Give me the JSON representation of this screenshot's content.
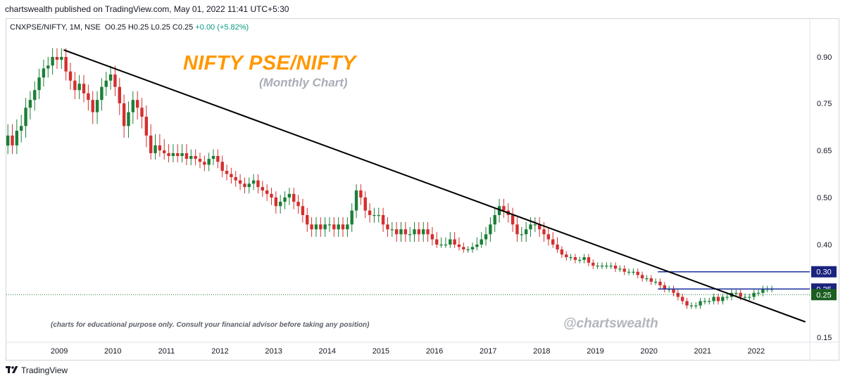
{
  "header": {
    "published_text": "chartswealth published on TradingView.com, May 01, 2022 11:41 UTC+5:30"
  },
  "symbol": {
    "name": "CNXPSE/NIFTY, 1M, NSE",
    "ohlc": "O0.25 H0.25 L0.25 C0.25",
    "change": "+0.00 (+5.82%)"
  },
  "annotations": {
    "title": "NIFTY PSE/NIFTY",
    "subtitle": "(Monthly Chart)",
    "disclaimer": "(charts for educational purpose only. Consult your financial advisor before taking any position)",
    "watermark": "@chartswealth"
  },
  "footer": {
    "brand": "TradingView"
  },
  "colors": {
    "up": "#1b7f37",
    "down": "#d32f2f",
    "trendline": "#000000",
    "hline": "#1a2fa0",
    "last_price_badge": "#1b5e20",
    "level_badge": "#1a237e"
  },
  "chart_data": {
    "type": "candlestick",
    "title": "NIFTY PSE/NIFTY",
    "subtitle": "(Monthly Chart)",
    "y_axis": {
      "position": "right",
      "scale": "log",
      "ticks": [
        "0.90",
        "0.75",
        "0.65",
        "0.50",
        "0.40",
        "0.15"
      ],
      "tick_values": [
        0.9,
        0.75,
        0.65,
        0.5,
        0.4,
        0.15
      ],
      "range": [
        0.14,
        1.1
      ]
    },
    "x_axis": {
      "ticks": [
        "2009",
        "2010",
        "2011",
        "2012",
        "2013",
        "2014",
        "2015",
        "2016",
        "2017",
        "2018",
        "2019",
        "2020",
        "2021",
        "2022"
      ],
      "range": [
        2008.0,
        2023.0
      ]
    },
    "monthly_close": [
      0.68,
      0.66,
      0.69,
      0.7,
      0.74,
      0.76,
      0.79,
      0.83,
      0.86,
      0.87,
      0.9,
      0.89,
      0.9,
      0.85,
      0.82,
      0.79,
      0.81,
      0.78,
      0.76,
      0.73,
      0.76,
      0.8,
      0.82,
      0.84,
      0.8,
      0.75,
      0.7,
      0.73,
      0.76,
      0.74,
      0.72,
      0.68,
      0.64,
      0.66,
      0.65,
      0.64,
      0.63,
      0.64,
      0.63,
      0.64,
      0.62,
      0.63,
      0.62,
      0.61,
      0.6,
      0.62,
      0.63,
      0.61,
      0.58,
      0.57,
      0.56,
      0.55,
      0.54,
      0.53,
      0.54,
      0.55,
      0.53,
      0.52,
      0.51,
      0.5,
      0.48,
      0.49,
      0.5,
      0.51,
      0.49,
      0.48,
      0.46,
      0.44,
      0.43,
      0.44,
      0.43,
      0.44,
      0.44,
      0.43,
      0.44,
      0.43,
      0.44,
      0.47,
      0.52,
      0.5,
      0.47,
      0.46,
      0.46,
      0.46,
      0.44,
      0.43,
      0.43,
      0.42,
      0.43,
      0.42,
      0.42,
      0.43,
      0.42,
      0.43,
      0.42,
      0.41,
      0.4,
      0.4,
      0.4,
      0.41,
      0.4,
      0.39,
      0.38,
      0.38,
      0.39,
      0.4,
      0.41,
      0.42,
      0.44,
      0.46,
      0.48,
      0.47,
      0.46,
      0.44,
      0.42,
      0.42,
      0.43,
      0.44,
      0.44,
      0.43,
      0.42,
      0.41,
      0.4,
      0.38,
      0.36,
      0.35,
      0.35,
      0.34,
      0.34,
      0.35,
      0.33,
      0.32,
      0.32,
      0.32,
      0.32,
      0.32,
      0.31,
      0.31,
      0.3,
      0.3,
      0.3,
      0.29,
      0.28,
      0.28,
      0.27,
      0.27,
      0.26,
      0.25,
      0.25,
      0.24,
      0.23,
      0.22,
      0.21,
      0.21,
      0.21,
      0.22,
      0.22,
      0.22,
      0.23,
      0.22,
      0.23,
      0.23,
      0.24,
      0.24,
      0.23,
      0.23,
      0.23,
      0.24,
      0.24,
      0.25,
      0.25,
      0.25
    ],
    "start": "2008-01",
    "last_candle": {
      "open": 0.25,
      "high": 0.25,
      "low": 0.25,
      "close": 0.25
    },
    "trendline": {
      "from": {
        "x": "2009-02",
        "y": 0.91
      },
      "to": {
        "x": "2022-12",
        "y": 0.18
      }
    },
    "horizontal_levels": [
      {
        "value": 0.3,
        "label": "0.30",
        "from": "2020-03"
      },
      {
        "value": 0.25,
        "label": "0.25",
        "from": "2020-03"
      }
    ],
    "last_price_label": "0.25"
  }
}
